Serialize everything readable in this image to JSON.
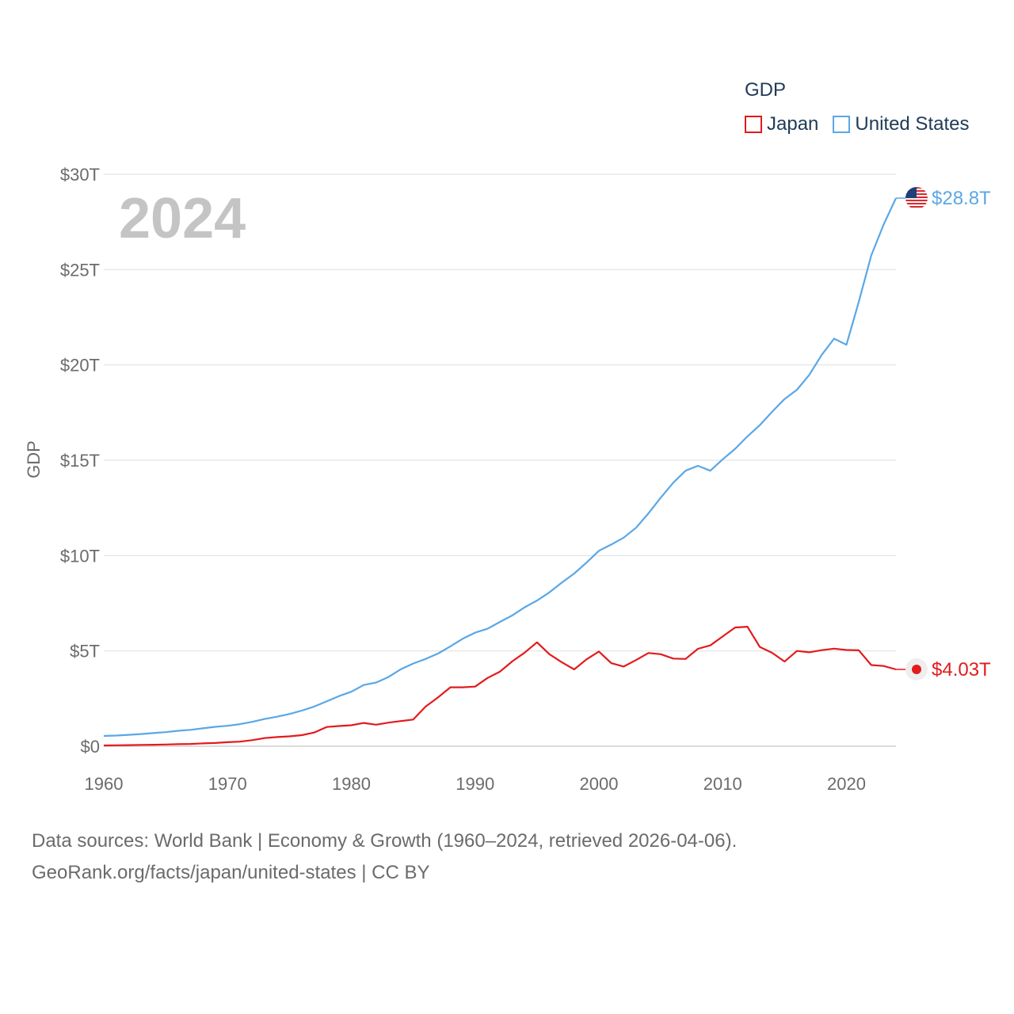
{
  "legend": {
    "title": "GDP",
    "items": [
      {
        "label": "Japan",
        "color": "#e41a1c"
      },
      {
        "label": "United States",
        "color": "#5aa7e6"
      }
    ]
  },
  "source": {
    "line1": "Data sources: World Bank | Economy & Growth (1960–2024, retrieved 2026-04-06).",
    "line2": "GeoRank.org/facts/japan/united-states | CC BY"
  },
  "chart_data": {
    "type": "line",
    "title": "GDP",
    "year_label": "2024",
    "ylabel": "GDP",
    "xlabel": "",
    "xlim": [
      1960,
      2024
    ],
    "ylim": [
      0,
      30
    ],
    "x_ticks": [
      1960,
      1970,
      1980,
      1990,
      2000,
      2010,
      2020
    ],
    "y_ticks": [
      {
        "value": 0,
        "label": "$0"
      },
      {
        "value": 5,
        "label": "$5T"
      },
      {
        "value": 10,
        "label": "$10T"
      },
      {
        "value": 15,
        "label": "$15T"
      },
      {
        "value": 20,
        "label": "$20T"
      },
      {
        "value": 25,
        "label": "$25T"
      },
      {
        "value": 30,
        "label": "$30T"
      }
    ],
    "grid": true,
    "legend_position": "top-right",
    "series": [
      {
        "name": "Japan",
        "color": "#e41a1c",
        "end_label": "$4.03T",
        "x": [
          1960,
          1961,
          1962,
          1963,
          1964,
          1965,
          1966,
          1967,
          1968,
          1969,
          1970,
          1971,
          1972,
          1973,
          1974,
          1975,
          1976,
          1977,
          1978,
          1979,
          1980,
          1981,
          1982,
          1983,
          1984,
          1985,
          1986,
          1987,
          1988,
          1989,
          1990,
          1991,
          1992,
          1993,
          1994,
          1995,
          1996,
          1997,
          1998,
          1999,
          2000,
          2001,
          2002,
          2003,
          2004,
          2005,
          2006,
          2007,
          2008,
          2009,
          2010,
          2011,
          2012,
          2013,
          2014,
          2015,
          2016,
          2017,
          2018,
          2019,
          2020,
          2021,
          2022,
          2023,
          2024
        ],
        "values": [
          0.04,
          0.05,
          0.06,
          0.07,
          0.08,
          0.09,
          0.11,
          0.12,
          0.15,
          0.17,
          0.21,
          0.24,
          0.32,
          0.43,
          0.48,
          0.52,
          0.58,
          0.72,
          1.01,
          1.06,
          1.1,
          1.22,
          1.13,
          1.24,
          1.32,
          1.4,
          2.08,
          2.56,
          3.09,
          3.09,
          3.13,
          3.58,
          3.91,
          4.45,
          4.91,
          5.45,
          4.83,
          4.41,
          4.03,
          4.56,
          4.97,
          4.36,
          4.18,
          4.52,
          4.89,
          4.83,
          4.6,
          4.58,
          5.11,
          5.29,
          5.76,
          6.23,
          6.27,
          5.21,
          4.9,
          4.44,
          5.0,
          4.93,
          5.04,
          5.12,
          5.05,
          5.03,
          4.26,
          4.21,
          4.03
        ]
      },
      {
        "name": "United States",
        "color": "#5aa7e6",
        "end_label": "$28.8T",
        "x": [
          1960,
          1961,
          1962,
          1963,
          1964,
          1965,
          1966,
          1967,
          1968,
          1969,
          1970,
          1971,
          1972,
          1973,
          1974,
          1975,
          1976,
          1977,
          1978,
          1979,
          1980,
          1981,
          1982,
          1983,
          1984,
          1985,
          1986,
          1987,
          1988,
          1989,
          1990,
          1991,
          1992,
          1993,
          1994,
          1995,
          1996,
          1997,
          1998,
          1999,
          2000,
          2001,
          2002,
          2003,
          2004,
          2005,
          2006,
          2007,
          2008,
          2009,
          2010,
          2011,
          2012,
          2013,
          2014,
          2015,
          2016,
          2017,
          2018,
          2019,
          2020,
          2021,
          2022,
          2023,
          2024
        ],
        "values": [
          0.54,
          0.56,
          0.6,
          0.64,
          0.69,
          0.74,
          0.81,
          0.86,
          0.94,
          1.02,
          1.07,
          1.16,
          1.28,
          1.43,
          1.55,
          1.69,
          1.87,
          2.08,
          2.35,
          2.63,
          2.86,
          3.21,
          3.34,
          3.63,
          4.04,
          4.34,
          4.58,
          4.86,
          5.24,
          5.64,
          5.96,
          6.16,
          6.52,
          6.86,
          7.29,
          7.64,
          8.07,
          8.58,
          9.06,
          9.63,
          10.25,
          10.58,
          10.94,
          11.46,
          12.21,
          13.04,
          13.82,
          14.45,
          14.71,
          14.45,
          15.05,
          15.6,
          16.25,
          16.84,
          17.55,
          18.21,
          18.7,
          19.48,
          20.53,
          21.38,
          21.06,
          23.32,
          25.74,
          27.36,
          28.75
        ]
      }
    ]
  }
}
